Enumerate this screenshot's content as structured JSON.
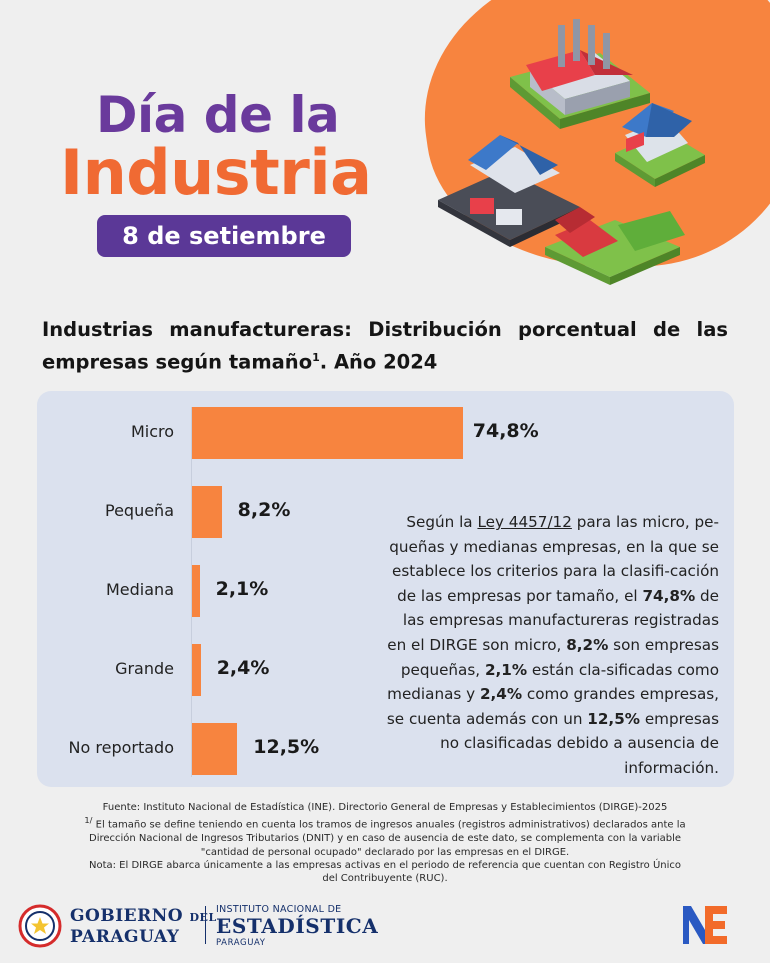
{
  "hero": {
    "title_line1": "Día de la",
    "title_line2": "Industria",
    "date": "8 de setiembre"
  },
  "colors": {
    "accent_orange": "#f7843f",
    "title_purple": "#6a3a9c",
    "pill_purple": "#5b3897",
    "panel_bg": "#dbe1ee",
    "navy": "#15306b"
  },
  "section_title": {
    "text": "Industrias manufactureras: Distribución porcentual de las empresas según tamaño",
    "footnote_mark": "1",
    "suffix": ". Año 2024"
  },
  "chart_data": {
    "type": "bar",
    "orientation": "horizontal",
    "categories": [
      "Micro",
      "Pequeña",
      "Mediana",
      "Grande",
      "No reportado"
    ],
    "values": [
      74.8,
      8.2,
      2.1,
      2.4,
      12.5
    ],
    "value_labels": [
      "74,8%",
      "8,2%",
      "2,1%",
      "2,4%",
      "12,5%"
    ],
    "unit": "%",
    "xlim": [
      0,
      100
    ],
    "grid": false,
    "legend": "none"
  },
  "description": {
    "p1": "Según la ",
    "law": "Ley 4457/12",
    "p2": " para las micro, pe-queñas y medianas empresas, en la que se establece los criterios para la clasifi-cación de las empresas por tamaño, el ",
    "v_micro": "74,8%",
    "p3": " de las empresas manufactureras registradas en el DIRGE son micro, ",
    "v_peq": "8,2%",
    "p4": " son empresas pequeñas, ",
    "v_med": "2,1%",
    "p5": " están cla-sificadas como medianas y ",
    "v_gra": "2,4%",
    "p6": " como grandes empresas, se cuenta además con un ",
    "v_nr": "12,5%",
    "p7": " empresas no clasificadas debido a ausencia de información."
  },
  "footnotes": {
    "source": "Fuente: Instituto Nacional de Estadística (INE). Directorio General de Empresas y Establecimientos (DIRGE)-2025",
    "note1_mark": "1/",
    "note1": " El tamaño se define teniendo en cuenta los tramos de ingresos anuales (registros administrativos) declarados ante la Dirección Nacional de Ingresos Tributarios (DNIT) y en caso de ausencia de este dato, se complementa con la variable \"cantidad de personal ocupado\" declarado por las empresas en el DIRGE.",
    "note2": "Nota: El DIRGE abarca únicamente a las empresas activas en el periodo de referencia que cuentan con Registro Único del Contribuyente (RUC)."
  },
  "footer": {
    "gov_line1_a": "GOBIERNO",
    "gov_line1_b": "DEL",
    "gov_line2": "PARAGUAY",
    "ine_line1": "INSTITUTO NACIONAL DE",
    "ine_line2": "ESTADÍSTICA",
    "ine_line3": "PARAGUAY",
    "seal_icon": "paraguay-coat-of-arms-icon",
    "ine_logo_icon": "ine-logo-icon"
  }
}
